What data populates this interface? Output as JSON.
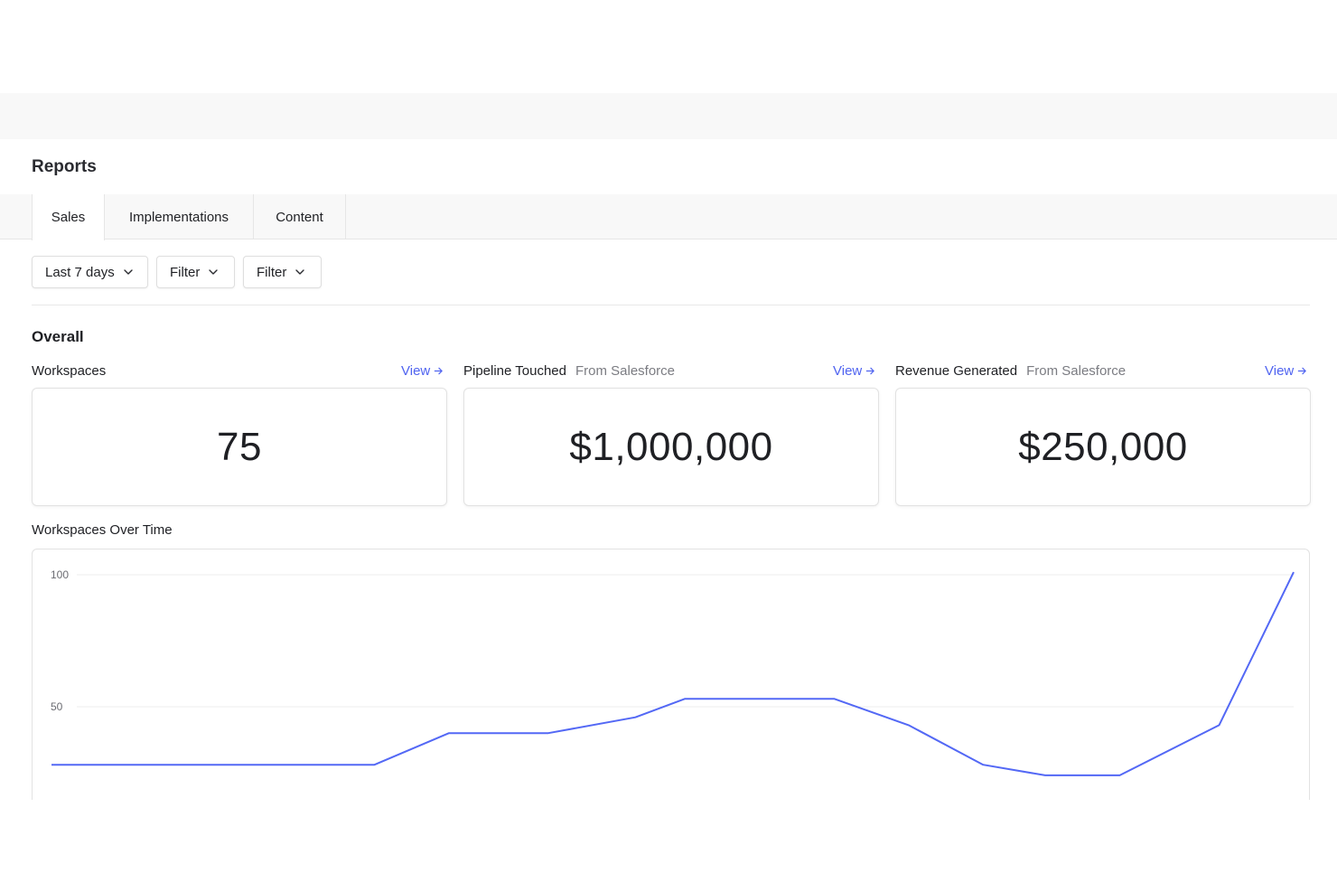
{
  "page": {
    "title": "Reports"
  },
  "tabs": [
    {
      "label": "Sales",
      "active": true
    },
    {
      "label": "Implementations",
      "active": false
    },
    {
      "label": "Content",
      "active": false
    }
  ],
  "filters": [
    {
      "label": "Last 7 days",
      "icon": "chevron-down-icon"
    },
    {
      "label": "Filter",
      "icon": "chevron-down-icon"
    },
    {
      "label": "Filter",
      "icon": "chevron-down-icon"
    }
  ],
  "overall": {
    "title": "Overall",
    "metrics": [
      {
        "label": "Workspaces",
        "sub": "",
        "value": "75",
        "view": "View"
      },
      {
        "label": "Pipeline Touched",
        "sub": "From Salesforce",
        "value": "$1,000,000",
        "view": "View"
      },
      {
        "label": "Revenue Generated",
        "sub": "From Salesforce",
        "value": "$250,000",
        "view": "View"
      }
    ]
  },
  "colors": {
    "accent": "#4f63f0",
    "line": "#5368f5"
  },
  "chart_data": {
    "type": "line",
    "title": "Workspaces Over Time",
    "xlabel": "",
    "ylabel": "",
    "ylim": [
      15,
      100
    ],
    "yticks": [
      100,
      50
    ],
    "grid": true,
    "series": [
      {
        "x": [
          0,
          11,
          16,
          21,
          26,
          32,
          40,
          47,
          51,
          56,
          63,
          69,
          75,
          80,
          86,
          94,
          100
        ],
        "values": [
          28,
          28,
          28,
          28,
          28,
          40,
          40,
          46,
          53,
          53,
          53,
          43,
          28,
          24,
          24,
          43,
          101
        ]
      }
    ]
  }
}
